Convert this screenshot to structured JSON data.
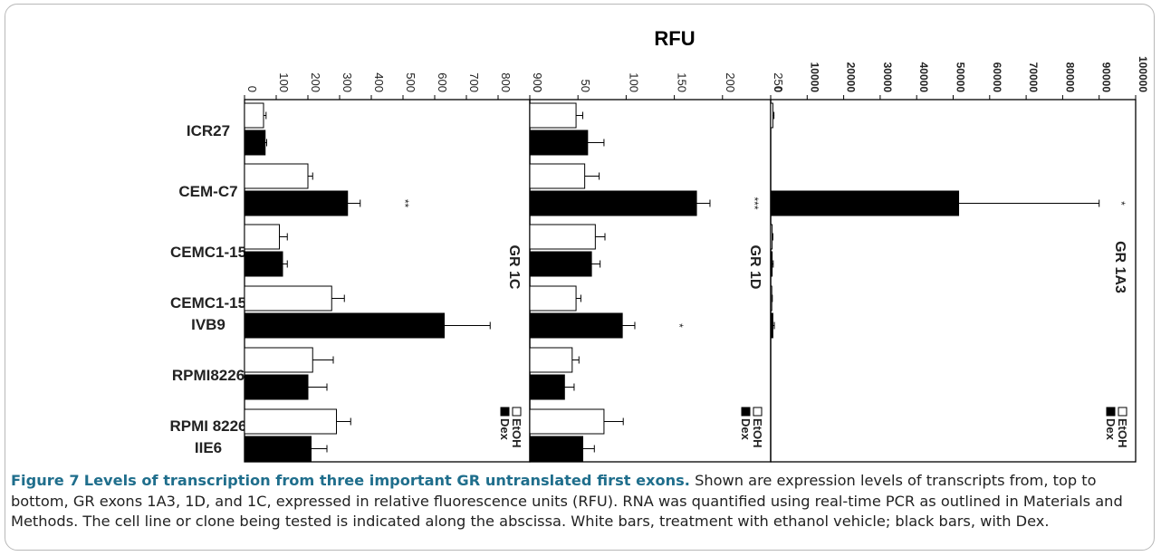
{
  "figure": {
    "caption_label": "Figure 7",
    "caption_title": "Levels of transcription from three important GR untranslated first exons.",
    "caption_body": "Shown are expression levels of transcripts from, top to bottom, GR exons 1A3, 1D, and 1C, expressed in relative fluorescence units (RFU). RNA was quantified using real-time PCR as outlined in Materials and Methods. The cell line or clone being tested is indicated along the abscissa. White bars, treatment with ethanol vehicle; black bars, with Dex."
  },
  "colors": {
    "etoh": "#ffffff",
    "dex": "#000000",
    "axis": "#000000",
    "caption_title": "#1f6e8c"
  },
  "chart_data": {
    "type": "bar",
    "shared_axis_title": "RFU",
    "categories": [
      "ICR27",
      "CEM-C7",
      "CEMC1-15",
      "CEMC1-15 IVB9",
      "RPMI8226",
      "RPMI 8226 IIE6"
    ],
    "category_lines": [
      [
        "ICR27"
      ],
      [
        "CEM-C7"
      ],
      [
        "CEMC1-15"
      ],
      [
        "CEMC1-15",
        "IVB9"
      ],
      [
        "RPMI8226"
      ],
      [
        "RPMI 8226",
        "IIE6"
      ]
    ],
    "legend": [
      {
        "label": "EtOH",
        "color": "#ffffff"
      },
      {
        "label": "Dex",
        "color": "#000000"
      }
    ],
    "panels": [
      {
        "title": "GR 1C",
        "ylim": [
          0,
          900
        ],
        "ticks": [
          0,
          100,
          200,
          300,
          400,
          500,
          600,
          700,
          800,
          900
        ],
        "tick_labels": [
          "0",
          "100",
          "200",
          "300",
          "400",
          "500",
          "600",
          "700",
          "800",
          "900"
        ],
        "series": [
          {
            "name": "EtOH",
            "values": [
              60,
              200,
              110,
              275,
              215,
              290
            ],
            "errors": [
              8,
              15,
              25,
              40,
              65,
              45
            ]
          },
          {
            "name": "Dex",
            "values": [
              65,
              325,
              120,
              630,
              200,
              210
            ],
            "errors": [
              5,
              40,
              15,
              145,
              60,
              50
            ]
          }
        ],
        "annotations": [
          {
            "category": "CEM-C7",
            "series": "Dex",
            "text": "**"
          },
          {
            "category": "CEMC1-15 IVB9",
            "series": "Dex",
            "text": "*"
          }
        ]
      },
      {
        "title": "GR 1D",
        "ylim": [
          0,
          250
        ],
        "ticks": [
          0,
          50,
          100,
          150,
          200,
          250
        ],
        "tick_labels": [
          "0",
          "50",
          "100",
          "150",
          "200",
          "250"
        ],
        "series": [
          {
            "name": "EtOH",
            "values": [
              48,
              57,
              68,
              48,
              44,
              77
            ],
            "errors": [
              7,
              15,
              10,
              5,
              7,
              20
            ]
          },
          {
            "name": "Dex",
            "values": [
              60,
              173,
              64,
              96,
              36,
              55
            ],
            "errors": [
              17,
              14,
              9,
              13,
              10,
              12
            ]
          }
        ],
        "annotations": [
          {
            "category": "CEM-C7",
            "series": "Dex",
            "text": "***"
          },
          {
            "category": "CEMC1-15 IVB9",
            "series": "Dex",
            "text": "*"
          }
        ]
      },
      {
        "title": "GR 1A3",
        "ylim": [
          0,
          100000
        ],
        "ticks": [
          0,
          10000,
          20000,
          30000,
          40000,
          50000,
          60000,
          70000,
          80000,
          90000,
          100000
        ],
        "tick_labels": [
          "0",
          "10000",
          "20000",
          "30000",
          "40000",
          "50000",
          "60000",
          "70000",
          "80000",
          "90000",
          "100000"
        ],
        "series": [
          {
            "name": "EtOH",
            "values": [
              600,
              0,
              400,
              300,
              0,
              0
            ],
            "errors": [
              300,
              0,
              200,
              150,
              0,
              0
            ]
          },
          {
            "name": "Dex",
            "values": [
              0,
              51500,
              400,
              600,
              0,
              0
            ],
            "errors": [
              0,
              38500,
              300,
              400,
              0,
              0
            ]
          }
        ],
        "annotations": [
          {
            "category": "CEM-C7",
            "series": "Dex",
            "text": "*"
          }
        ]
      }
    ]
  }
}
